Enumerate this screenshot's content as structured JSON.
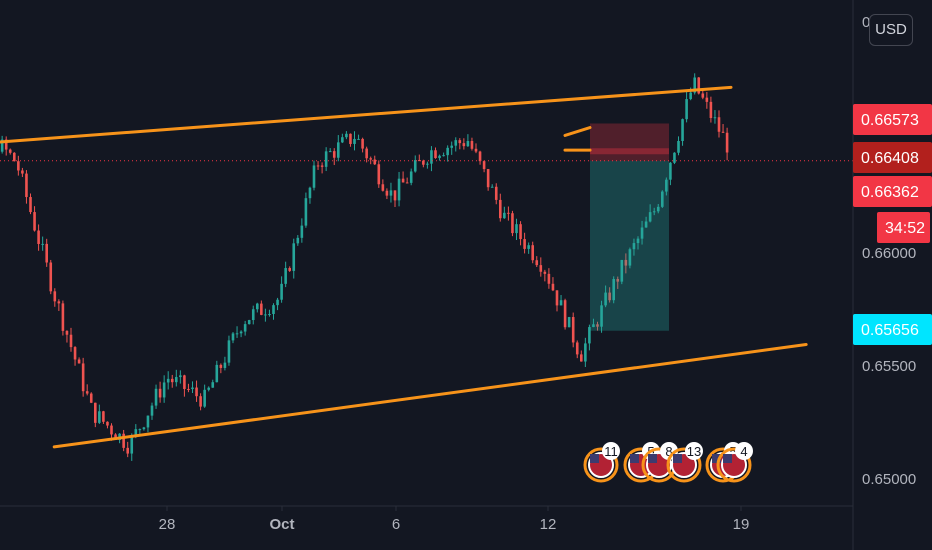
{
  "currency_button": "USD",
  "price_axis": {
    "ticks": [
      {
        "label": "0.66000",
        "value": 0.66
      },
      {
        "label": "0.65500",
        "value": 0.655
      },
      {
        "label": "0.65000",
        "value": 0.65
      }
    ],
    "top_partial_label": "0"
  },
  "time_axis": {
    "ticks": [
      {
        "label": "28",
        "bold": false
      },
      {
        "label": "Oct",
        "bold": true
      },
      {
        "label": "6",
        "bold": false
      },
      {
        "label": "12",
        "bold": false
      },
      {
        "label": "19",
        "bold": false
      }
    ]
  },
  "price_tags": [
    {
      "label": "0.66573",
      "value": 0.66573,
      "color": "#f23645"
    },
    {
      "label": "0.66408",
      "value": 0.66408,
      "color": "#b2201d"
    },
    {
      "label": "0.66362",
      "value": 0.66362,
      "color": "#f23645"
    },
    {
      "label": "34:52",
      "value": 0.66362,
      "color": "#f23645"
    },
    {
      "label": "0.65656",
      "value": 0.65656,
      "color": "#00e5ff"
    }
  ],
  "economic_events": [
    {
      "count": "11"
    },
    {
      "count": "5"
    },
    {
      "count": "8"
    },
    {
      "count": "13"
    },
    {
      "count": "5"
    },
    {
      "count": "4"
    }
  ],
  "colors": {
    "background": "#131722",
    "up": "#26a69a",
    "down": "#ef5350",
    "channel": "#f7931a",
    "stop_zone": "rgba(242,54,69,0.28)",
    "target_zone": "rgba(38,166,154,0.32)",
    "current_price_line": "#f23645"
  },
  "chart_data": {
    "type": "candlestick",
    "symbol_quote_currency": "USD",
    "x_ticks": [
      "28",
      "Oct",
      "6",
      "12",
      "19"
    ],
    "y_ticks": [
      0.66,
      0.655,
      0.65
    ],
    "ylim": [
      0.6496,
      0.6692
    ],
    "current_price": 0.66408,
    "countdown": "34:52",
    "approx_close_path": [
      {
        "x": "Sep 22",
        "y": 0.6675
      },
      {
        "x": "Sep 24",
        "y": 0.664
      },
      {
        "x": "Sep 25",
        "y": 0.6582
      },
      {
        "x": "Sep 26",
        "y": 0.653
      },
      {
        "x": "Sep 27",
        "y": 0.6515
      },
      {
        "x": "Sep 28",
        "y": 0.6545
      },
      {
        "x": "Sep 29",
        "y": 0.6535
      },
      {
        "x": "Sep 30",
        "y": 0.657
      },
      {
        "x": "Oct 1",
        "y": 0.658
      },
      {
        "x": "Oct 2",
        "y": 0.664
      },
      {
        "x": "Oct 3",
        "y": 0.6652
      },
      {
        "x": "Oct 4",
        "y": 0.6625
      },
      {
        "x": "Oct 5",
        "y": 0.6645
      },
      {
        "x": "Oct 6",
        "y": 0.665
      },
      {
        "x": "Oct 7",
        "y": 0.6615
      },
      {
        "x": "Oct 8",
        "y": 0.6595
      },
      {
        "x": "Oct 9",
        "y": 0.6555
      },
      {
        "x": "Oct 10",
        "y": 0.659
      },
      {
        "x": "Oct 11",
        "y": 0.662
      },
      {
        "x": "Oct 12",
        "y": 0.6675
      },
      {
        "x": "Oct 13",
        "y": 0.6645
      }
    ],
    "drawings": {
      "channel_upper": [
        {
          "x": "Sep 22",
          "y": 0.66472
        },
        {
          "x": "Oct 13",
          "y": 0.66733
        }
      ],
      "channel_lower": [
        {
          "x": "Sep 25",
          "y": 0.65142
        },
        {
          "x": "Oct 15",
          "y": 0.65595
        }
      ],
      "short_position": {
        "entry": 0.66408,
        "stop": 0.66573,
        "target": 0.65656
      }
    }
  }
}
